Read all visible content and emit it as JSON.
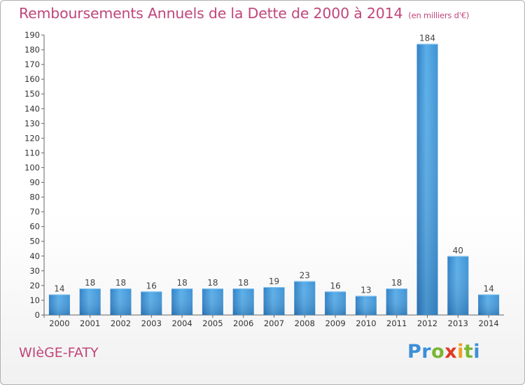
{
  "header": {
    "title": "Remboursements Annuels de la Dette de 2000 à 2014",
    "unit": "(en milliers d'€)"
  },
  "footer": {
    "city": "WIèGE-FATY",
    "logo_letters": [
      {
        "ch": "P",
        "color": "#3c8fd8"
      },
      {
        "ch": "r",
        "color": "#3c8fd8"
      },
      {
        "ch": "o",
        "color": "#7ab630"
      },
      {
        "ch": "x",
        "color": "#e03a22"
      },
      {
        "ch": "i",
        "color": "#f0a020"
      },
      {
        "ch": "t",
        "color": "#7ab630"
      },
      {
        "ch": "i",
        "color": "#3c8fd8"
      }
    ]
  },
  "chart_data": {
    "type": "bar",
    "title": "Remboursements Annuels de la Dette de 2000 à 2014",
    "xlabel": "",
    "ylabel": "",
    "categories": [
      "2000",
      "2001",
      "2002",
      "2003",
      "2004",
      "2005",
      "2006",
      "2007",
      "2008",
      "2009",
      "2010",
      "2011",
      "2012",
      "2013",
      "2014"
    ],
    "values": [
      14,
      18,
      18,
      16,
      18,
      18,
      18,
      19,
      23,
      16,
      13,
      18,
      184,
      40,
      14
    ],
    "data_labels": [
      "14",
      "18",
      "18",
      "16",
      "18",
      "18",
      "18",
      "19",
      "23",
      "16",
      "13",
      "18",
      "184",
      "40",
      "14"
    ],
    "ylim": [
      0,
      190
    ],
    "yticks": [
      0,
      10,
      20,
      30,
      40,
      50,
      60,
      70,
      80,
      90,
      100,
      110,
      120,
      130,
      140,
      150,
      160,
      170,
      180,
      190
    ],
    "grid": false,
    "legend": "none",
    "colors": {
      "bar_light": "#5aaee8",
      "bar_dark": "#2a78bd",
      "axis": "#555555",
      "text": "#333333"
    }
  }
}
